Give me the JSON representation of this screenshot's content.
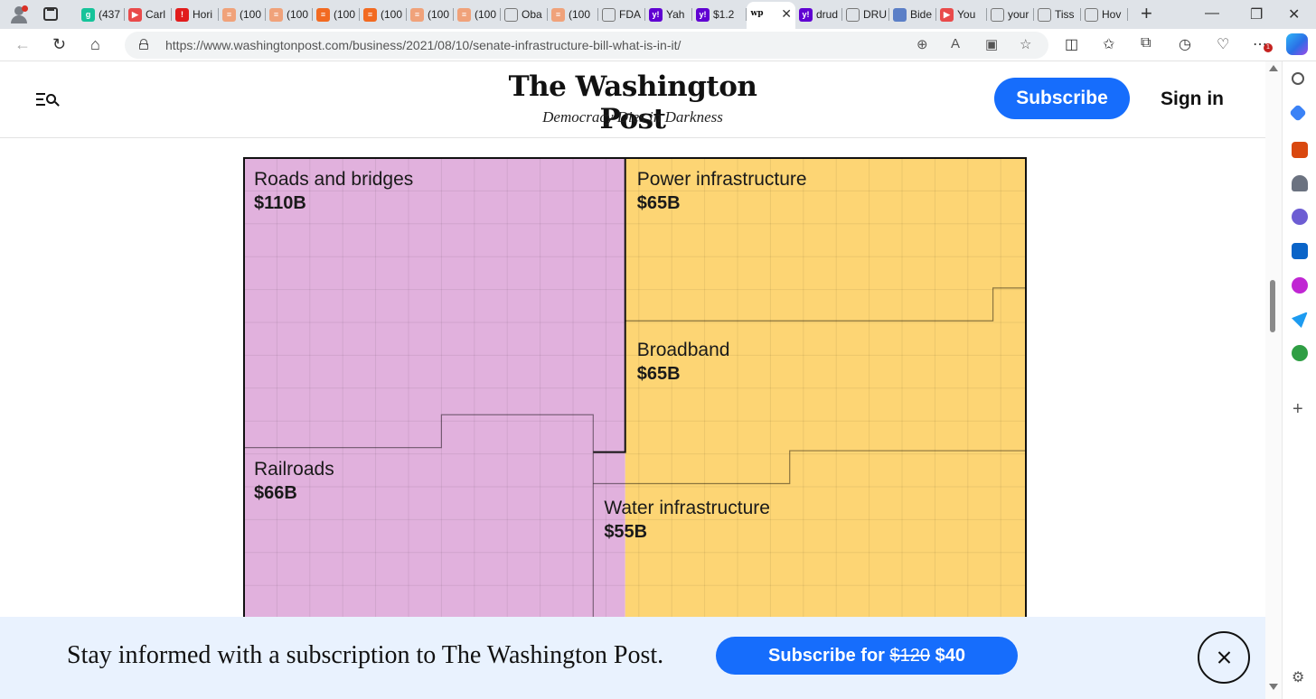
{
  "browser": {
    "tabs": [
      {
        "label": "(437",
        "icon": "grammarly-icon",
        "color": "#15c39a",
        "glyph": "g"
      },
      {
        "label": "Carl",
        "icon": "youtube-icon",
        "color": "#e94a4a",
        "glyph": "▶"
      },
      {
        "label": "Hori",
        "icon": "pin-icon",
        "color": "#e11c1c",
        "glyph": "!"
      },
      {
        "label": "(100",
        "icon": "substack-icon",
        "color": "#f0a27a",
        "glyph": "≡"
      },
      {
        "label": "(100",
        "icon": "substack-icon",
        "color": "#f0a27a",
        "glyph": "≡"
      },
      {
        "label": "(100",
        "icon": "substack-icon",
        "color": "#f26a21",
        "glyph": "≡"
      },
      {
        "label": "(100",
        "icon": "substack-icon",
        "color": "#f26a21",
        "glyph": "≡"
      },
      {
        "label": "(100",
        "icon": "substack-icon",
        "color": "#f0a27a",
        "glyph": "≡"
      },
      {
        "label": "(100",
        "icon": "substack-icon",
        "color": "#f0a27a",
        "glyph": "≡"
      },
      {
        "label": "Oba",
        "icon": "search-icon",
        "color": "#dfe3e8",
        "glyph": ""
      },
      {
        "label": "(100",
        "icon": "substack-icon",
        "color": "#f0a27a",
        "glyph": "≡"
      },
      {
        "label": "FDA",
        "icon": "document-icon",
        "color": "#dfe3e8",
        "glyph": ""
      },
      {
        "label": "Yah",
        "icon": "yahoo-icon",
        "color": "#6001d2",
        "glyph": "y!"
      },
      {
        "label": "$1.2",
        "icon": "yahoo-icon",
        "color": "#6001d2",
        "glyph": "y!"
      },
      {
        "label": "",
        "icon": "wapo-icon",
        "color": "#ffffff",
        "glyph": "wp"
      },
      {
        "label": "drud",
        "icon": "yahoo-icon",
        "color": "#6001d2",
        "glyph": "y!"
      },
      {
        "label": "DRU",
        "icon": "drudge-icon",
        "color": "#dfe3e8",
        "glyph": ""
      },
      {
        "label": "Bide",
        "icon": "news-icon",
        "color": "#5b7fc7",
        "glyph": ""
      },
      {
        "label": "You",
        "icon": "youtube-icon",
        "color": "#e94a4a",
        "glyph": "▶"
      },
      {
        "label": "your",
        "icon": "search-icon",
        "color": "#dfe3e8",
        "glyph": ""
      },
      {
        "label": "Tiss",
        "icon": "edge-icon",
        "color": "#dfe3e8",
        "glyph": ""
      },
      {
        "label": "Hov",
        "icon": "globe-icon",
        "color": "#dfe3e8",
        "glyph": ""
      }
    ],
    "url": "https://www.washingtonpost.com/business/2021/08/10/senate-infrastructure-bill-what-is-in-it/",
    "extension_badge": "1"
  },
  "header": {
    "logo": "The Washington Post",
    "tagline": "Democracy Dies in Darkness",
    "subscribe_label": "Subscribe",
    "signin_label": "Sign in"
  },
  "chart_data": {
    "type": "treemap",
    "groups": [
      {
        "color": "#e1b1dd",
        "items": [
          {
            "name": "Roads and bridges",
            "value_label": "$110B",
            "value": 110
          },
          {
            "name": "Railroads",
            "value_label": "$66B",
            "value": 66
          }
        ]
      },
      {
        "color": "#fdd574",
        "items": [
          {
            "name": "Power infrastructure",
            "value_label": "$65B",
            "value": 65
          },
          {
            "name": "Broadband",
            "value_label": "$65B",
            "value": 65
          },
          {
            "name": "Water infrastructure",
            "value_label": "$55B",
            "value": 55
          }
        ]
      }
    ]
  },
  "banner": {
    "text": "Stay informed with a subscription to The Washington Post.",
    "button_prefix": "Subscribe for ",
    "old_price": "$120",
    "new_price": " $40"
  }
}
